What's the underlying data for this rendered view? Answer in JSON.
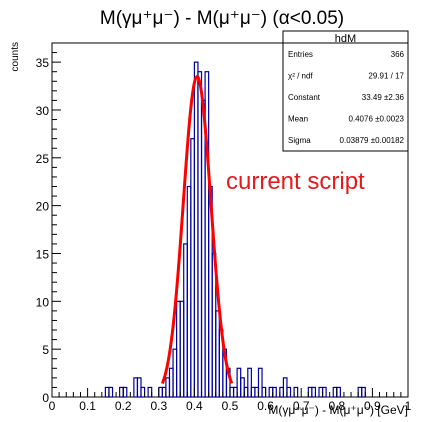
{
  "chart_data": {
    "type": "histogram",
    "title": "M(γμ⁺μ⁻) - M(μ⁺μ⁻) (α<0.05)",
    "xlabel": "M(γμ⁺μ⁻) - M(μ⁺μ⁻) [GeV]",
    "ylabel": "counts",
    "xlim": [
      0,
      1
    ],
    "ylim": [
      0,
      37
    ],
    "x_ticks": [
      "0",
      "0.1",
      "0.2",
      "0.3",
      "0.4",
      "0.5",
      "0.6",
      "0.7",
      "0.8",
      "0.9",
      "1"
    ],
    "y_ticks": [
      "0",
      "5",
      "10",
      "15",
      "20",
      "25",
      "30",
      "35"
    ],
    "bin_width": 0.01,
    "bins": [
      [
        0.15,
        0.16,
        1
      ],
      [
        0.16,
        0.17,
        1
      ],
      [
        0.19,
        0.2,
        1
      ],
      [
        0.2,
        0.21,
        1
      ],
      [
        0.23,
        0.24,
        2
      ],
      [
        0.24,
        0.25,
        2
      ],
      [
        0.25,
        0.26,
        1
      ],
      [
        0.27,
        0.28,
        1
      ],
      [
        0.3,
        0.31,
        1
      ],
      [
        0.31,
        0.32,
        1
      ],
      [
        0.32,
        0.33,
        2
      ],
      [
        0.33,
        0.34,
        3
      ],
      [
        0.34,
        0.35,
        5
      ],
      [
        0.35,
        0.36,
        10
      ],
      [
        0.36,
        0.37,
        10
      ],
      [
        0.37,
        0.38,
        16
      ],
      [
        0.38,
        0.39,
        22
      ],
      [
        0.39,
        0.4,
        27
      ],
      [
        0.4,
        0.41,
        35
      ],
      [
        0.41,
        0.42,
        34
      ],
      [
        0.42,
        0.43,
        31
      ],
      [
        0.43,
        0.44,
        34
      ],
      [
        0.44,
        0.45,
        22
      ],
      [
        0.45,
        0.46,
        15
      ],
      [
        0.46,
        0.47,
        9
      ],
      [
        0.47,
        0.48,
        7
      ],
      [
        0.48,
        0.49,
        5
      ],
      [
        0.49,
        0.5,
        3
      ],
      [
        0.5,
        0.51,
        1
      ],
      [
        0.51,
        0.52,
        1
      ],
      [
        0.52,
        0.53,
        3
      ],
      [
        0.53,
        0.54,
        2
      ],
      [
        0.54,
        0.55,
        1
      ],
      [
        0.55,
        0.56,
        3
      ],
      [
        0.56,
        0.57,
        1
      ],
      [
        0.57,
        0.58,
        1
      ],
      [
        0.58,
        0.59,
        3
      ],
      [
        0.59,
        0.6,
        1
      ],
      [
        0.61,
        0.62,
        1
      ],
      [
        0.62,
        0.63,
        1
      ],
      [
        0.64,
        0.65,
        1
      ],
      [
        0.65,
        0.66,
        2
      ],
      [
        0.66,
        0.67,
        1
      ],
      [
        0.68,
        0.69,
        1
      ],
      [
        0.72,
        0.73,
        1
      ],
      [
        0.73,
        0.74,
        1
      ],
      [
        0.75,
        0.76,
        1
      ],
      [
        0.76,
        0.77,
        1
      ],
      [
        0.79,
        0.8,
        1
      ],
      [
        0.8,
        0.81,
        1
      ],
      [
        0.86,
        0.87,
        1
      ],
      [
        0.87,
        0.88,
        1
      ]
    ],
    "fit": {
      "type": "gaussian",
      "constant": 33.49,
      "mean": 0.4076,
      "sigma": 0.03879,
      "color": "#ff0000"
    },
    "hist_color": "#0000a0",
    "stats_box": {
      "name": "hdM",
      "rows": [
        {
          "label": "Entries",
          "value": "366"
        },
        {
          "label": "χ² / ndf",
          "value": "29.91 / 17"
        },
        {
          "label": "Constant",
          "value": "33.49 ±2.36"
        },
        {
          "label": "Mean",
          "value": "0.4076 ±0.0023"
        },
        {
          "label": "Sigma",
          "value": "0.03879 ±0.00182"
        }
      ]
    },
    "annotation": {
      "text": "current script",
      "color": "#e41a1c"
    }
  }
}
